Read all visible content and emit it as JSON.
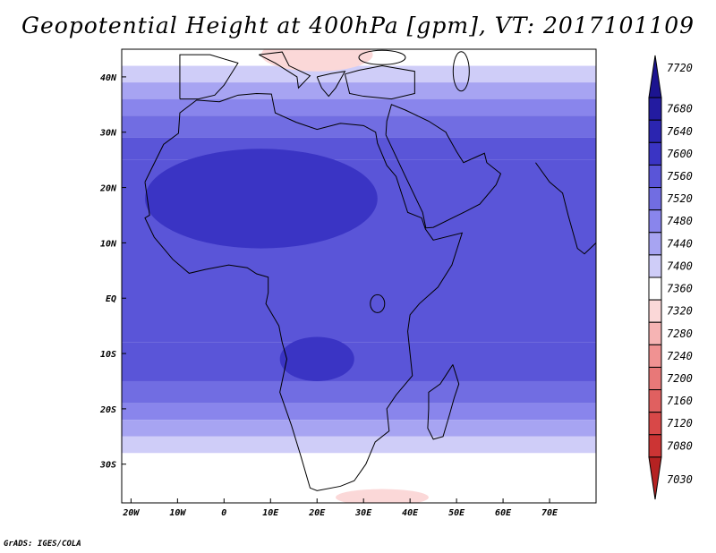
{
  "title": "Geopotential Height at 400hPa [gpm], VT: 2017101109",
  "footer": "GrADS: IGES/COLA",
  "map": {
    "projection": "latlon",
    "lon_range": [
      -22,
      80
    ],
    "lat_range": [
      -37,
      45
    ],
    "x_ticks": [
      {
        "value": -20,
        "label": "20W"
      },
      {
        "value": -10,
        "label": "10W"
      },
      {
        "value": 0,
        "label": "0"
      },
      {
        "value": 10,
        "label": "10E"
      },
      {
        "value": 20,
        "label": "20E"
      },
      {
        "value": 30,
        "label": "30E"
      },
      {
        "value": 40,
        "label": "40E"
      },
      {
        "value": 50,
        "label": "50E"
      },
      {
        "value": 60,
        "label": "60E"
      },
      {
        "value": 70,
        "label": "70E"
      }
    ],
    "y_ticks": [
      {
        "value": 40,
        "label": "40N"
      },
      {
        "value": 30,
        "label": "30N"
      },
      {
        "value": 20,
        "label": "20N"
      },
      {
        "value": 10,
        "label": "10N"
      },
      {
        "value": 0,
        "label": "EQ"
      },
      {
        "value": -10,
        "label": "10S"
      },
      {
        "value": -20,
        "label": "20S"
      },
      {
        "value": -30,
        "label": "30S"
      }
    ],
    "field_zones": [
      {
        "lat_from": 45,
        "lat_to": 42,
        "value": 7360
      },
      {
        "lat_from": 42,
        "lat_to": 39,
        "value": 7400
      },
      {
        "lat_from": 39,
        "lat_to": 36,
        "value": 7440
      },
      {
        "lat_from": 36,
        "lat_to": 33,
        "value": 7480
      },
      {
        "lat_from": 33,
        "lat_to": 29,
        "value": 7520
      },
      {
        "lat_from": 29,
        "lat_to": 25,
        "value": 7560
      },
      {
        "lat_from": 25,
        "lat_to": -8,
        "value": 7560
      },
      {
        "lat_from": -8,
        "lat_to": -15,
        "value": 7560
      },
      {
        "lat_from": -15,
        "lat_to": -19,
        "value": 7520
      },
      {
        "lat_from": -19,
        "lat_to": -22,
        "value": 7480
      },
      {
        "lat_from": -22,
        "lat_to": -25,
        "value": 7440
      },
      {
        "lat_from": -25,
        "lat_to": -28,
        "value": 7400
      },
      {
        "lat_from": -28,
        "lat_to": -37,
        "value": 7360
      }
    ],
    "high_cells": [
      {
        "lon": 8,
        "lat": 18,
        "rlon": 25,
        "rlat": 9,
        "value": 7600
      },
      {
        "lon": 20,
        "lat": -11,
        "rlon": 8,
        "rlat": 4,
        "value": 7600
      }
    ],
    "low_cells": [
      {
        "lon": 20,
        "lat": 44,
        "rlon": 12,
        "rlat": 3,
        "value": 7320
      },
      {
        "lon": -2,
        "lat": -33,
        "rlon": 3,
        "rlat": 1,
        "value": 7360
      },
      {
        "lon": 42,
        "lat": -34,
        "rlon": 2,
        "rlat": 1.5,
        "value": 7360
      },
      {
        "lon": 34,
        "lat": -36,
        "rlon": 10,
        "rlat": 1.5,
        "value": 7320
      }
    ]
  },
  "colorbar": {
    "levels": [
      {
        "label": "7720",
        "color": "#1c1490"
      },
      {
        "label": "7680",
        "color": "#231ba0"
      },
      {
        "label": "7640",
        "color": "#2b25b0"
      },
      {
        "label": "7600",
        "color": "#3a34c4"
      },
      {
        "label": "7560",
        "color": "#5a55d8"
      },
      {
        "label": "7520",
        "color": "#716de2"
      },
      {
        "label": "7480",
        "color": "#8985ec"
      },
      {
        "label": "7440",
        "color": "#a7a4f2"
      },
      {
        "label": "7400",
        "color": "#cfcdf8"
      },
      {
        "label": "7360",
        "color": "#ffffff"
      },
      {
        "label": "7320",
        "color": "#fbd8d8"
      },
      {
        "label": "7280",
        "color": "#f6b4b4"
      },
      {
        "label": "7240",
        "color": "#f09292"
      },
      {
        "label": "7200",
        "color": "#e87878"
      },
      {
        "label": "7160",
        "color": "#e06060"
      },
      {
        "label": "7120",
        "color": "#d84848"
      },
      {
        "label": "7080",
        "color": "#cc3434"
      },
      {
        "label": "7030",
        "color": "#b52222"
      }
    ]
  }
}
